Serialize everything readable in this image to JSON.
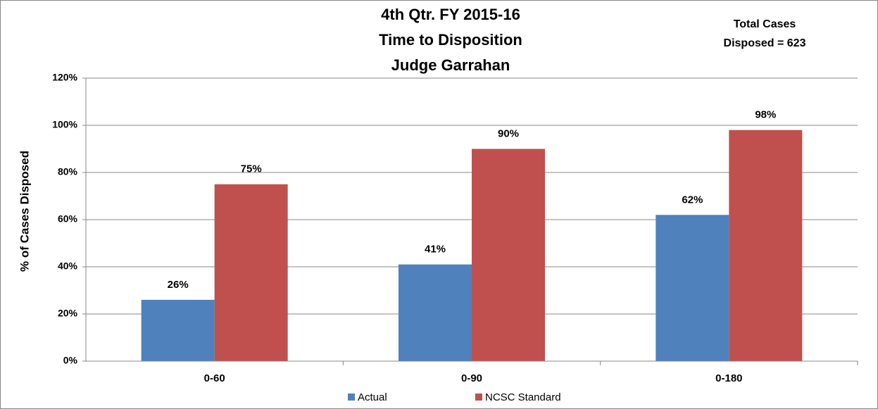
{
  "chart_data": {
    "type": "bar",
    "title": [
      "4th Qtr. FY 2015-16",
      "Time to Disposition",
      "Judge Garrahan"
    ],
    "annotation": [
      "Total Cases",
      "Disposed = 623"
    ],
    "y_label": "% of Cases Disposed",
    "categories": [
      "0-60",
      "0-90",
      "0-180"
    ],
    "series": [
      {
        "name": "Actual",
        "color": "#4f81bd",
        "values": [
          26,
          41,
          62
        ],
        "value_labels": [
          "26%",
          "41%",
          "62%"
        ]
      },
      {
        "name": "NCSC Standard",
        "color": "#c0504d",
        "values": [
          75,
          90,
          98
        ],
        "value_labels": [
          "75%",
          "90%",
          "98%"
        ]
      }
    ],
    "ylim": [
      0,
      120
    ],
    "yticks": [
      {
        "value": 0,
        "label": "0%"
      },
      {
        "value": 20,
        "label": "20%"
      },
      {
        "value": 40,
        "label": "40%"
      },
      {
        "value": 60,
        "label": "60%"
      },
      {
        "value": 80,
        "label": "80%"
      },
      {
        "value": 100,
        "label": "100%"
      },
      {
        "value": 120,
        "label": "120%"
      }
    ],
    "grid": true,
    "legend": "bottom"
  }
}
